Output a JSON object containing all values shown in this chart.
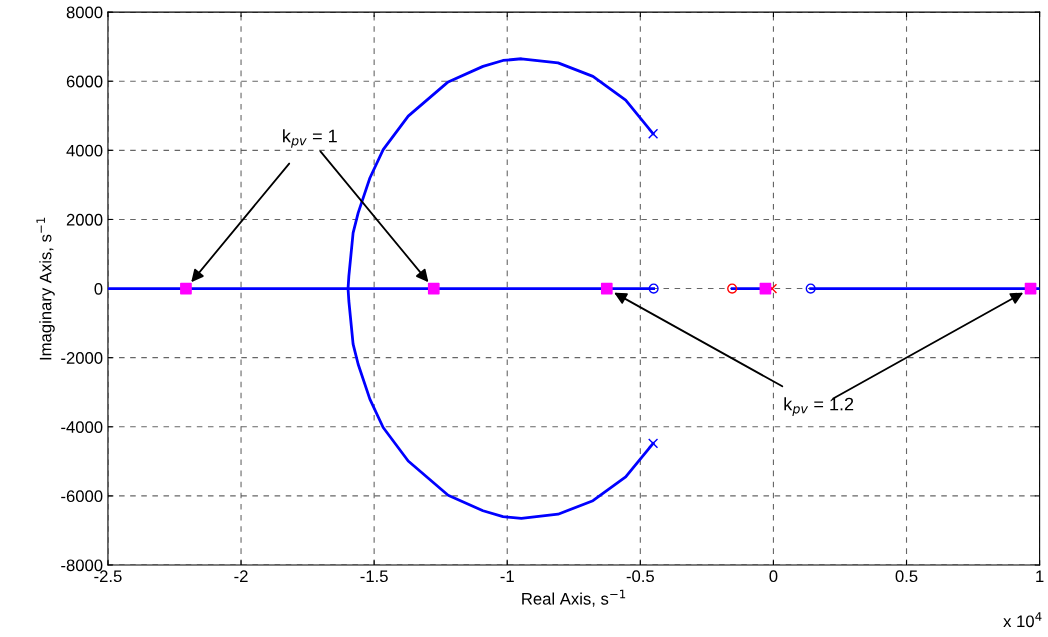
{
  "chart_data": {
    "type": "line",
    "xlabel": "Real Axis, s$^{−1}$",
    "ylabel": "Imaginary Axis, s$^{−1}$",
    "xlim": [
      -2.5,
      1
    ],
    "xticks": [
      -2.5,
      -2,
      -1.5,
      -1,
      -0.5,
      0,
      0.5,
      1
    ],
    "ylim": [
      -8000,
      8000
    ],
    "yticks": [
      -8000,
      -6000,
      -4000,
      -2000,
      0,
      2000,
      4000,
      6000,
      8000
    ],
    "grid": true,
    "legend": false,
    "annotations": [
      "x 10$^{4}$"
    ],
    "series": [
      {
        "color": "#0000ff",
        "x": [
          -0.452,
          -0.555,
          -0.678,
          -0.809,
          -0.947,
          -1.016,
          -1.091,
          -1.222,
          -1.372,
          -1.466,
          -1.516,
          -1.56,
          -1.579,
          -1.595,
          -1.598,
          -1.595,
          -1.579,
          -1.56,
          -1.516,
          -1.466,
          -1.372,
          -1.222,
          -1.091,
          -1.016,
          -0.947,
          -0.809,
          -0.678,
          -0.555,
          -0.452
        ],
        "values": [
          4480,
          5450,
          6140,
          6530,
          6650,
          6600,
          6430,
          5980,
          4990,
          4020,
          3200,
          2190,
          1610,
          360,
          0,
          -360,
          -1610,
          -2190,
          -3200,
          -4020,
          -4990,
          -5980,
          -6430,
          -6600,
          -6650,
          -6530,
          -6140,
          -5450,
          -4480
        ]
      },
      {
        "color": "#0000ff",
        "x": [
          -2.5,
          -0.45
        ],
        "values": [
          0,
          0
        ]
      },
      {
        "color": "#0000ff",
        "x": [
          -0.155,
          -0.03
        ],
        "values": [
          0,
          0
        ]
      },
      {
        "color": "#0000ff",
        "x": [
          0.14,
          1
        ],
        "values": [
          0,
          0
        ]
      },
      {
        "type": "scatter",
        "marker": "cross",
        "color": "#0000ff",
        "x": [
          -0.452,
          -0.452
        ],
        "values": [
          4480,
          -4480
        ]
      },
      {
        "type": "scatter",
        "marker": "circle",
        "color": "#0000ff",
        "x": [
          -0.45,
          0.14
        ],
        "values": [
          0,
          0
        ]
      },
      {
        "type": "scatter",
        "marker": "circle",
        "color": "#ff0000",
        "x": [
          -0.155
        ],
        "values": [
          0
        ]
      },
      {
        "type": "scatter",
        "marker": "cross",
        "color": "#ff0000",
        "x": [
          -0.005
        ],
        "values": [
          0
        ]
      },
      {
        "type": "scatter",
        "marker": "square",
        "color": "#ff00ff",
        "name": "k$_{pv}$ = 1",
        "x": [
          -2.207,
          -1.276
        ],
        "values": [
          0,
          0
        ]
      },
      {
        "type": "scatter",
        "marker": "square",
        "color": "#ff00ff",
        "name": "k$_{pv}$ = 1.2",
        "x": [
          -0.626,
          0.966
        ],
        "values": [
          0,
          0
        ]
      },
      {
        "type": "scatter",
        "marker": "square",
        "color": "#ff00ff",
        "x": [
          -0.03
        ],
        "values": [
          0
        ]
      }
    ]
  }
}
